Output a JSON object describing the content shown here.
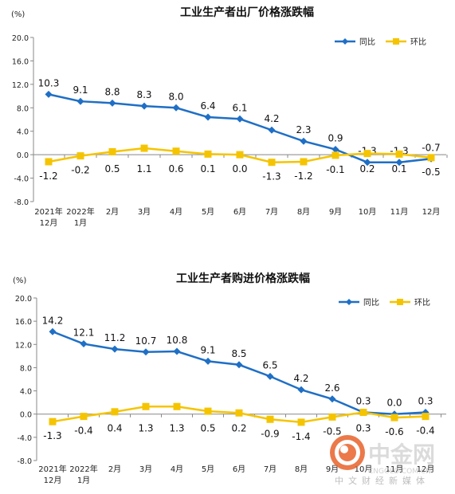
{
  "chart_data": [
    {
      "type": "line",
      "title": "工业生产者出厂价格涨跌幅",
      "unit_label": "(%)",
      "categories": [
        [
          "2021年",
          "12月"
        ],
        [
          "2022年",
          "1月"
        ],
        [
          "2月"
        ],
        [
          "3月"
        ],
        [
          "4月"
        ],
        [
          "5月"
        ],
        [
          "6月"
        ],
        [
          "7月"
        ],
        [
          "8月"
        ],
        [
          "9月"
        ],
        [
          "10月"
        ],
        [
          "11月"
        ],
        [
          "12月"
        ]
      ],
      "ylim": [
        -8.0,
        20.0
      ],
      "yticks": [
        "20.0",
        "16.0",
        "12.0",
        "8.0",
        "4.0",
        "0.0",
        "-4.0",
        "-8.0"
      ],
      "legend_position": "top-right",
      "grid": false,
      "series": [
        {
          "name": "同比",
          "color": "#1F6FC5",
          "marker": "diamond",
          "values": [
            10.3,
            9.1,
            8.8,
            8.3,
            8.0,
            6.4,
            6.1,
            4.2,
            2.3,
            0.9,
            -1.3,
            -1.3,
            -0.7
          ],
          "labels": [
            "10.3",
            "9.1",
            "8.8",
            "8.3",
            "8.0",
            "6.4",
            "6.1",
            "4.2",
            "2.3",
            "0.9",
            "-1.3",
            "-1.3",
            "-0.7"
          ]
        },
        {
          "name": "环比",
          "color": "#F5C400",
          "marker": "square",
          "values": [
            -1.2,
            -0.2,
            0.5,
            1.1,
            0.6,
            0.1,
            0.0,
            -1.3,
            -1.2,
            -0.1,
            0.2,
            0.1,
            -0.5
          ],
          "labels": [
            "-1.2",
            "-0.2",
            "0.5",
            "1.1",
            "0.6",
            "0.1",
            "0.0",
            "-1.3",
            "-1.2",
            "-0.1",
            "0.2",
            "0.1",
            "-0.5"
          ]
        }
      ]
    },
    {
      "type": "line",
      "title": "工业生产者购进价格涨跌幅",
      "unit_label": "(%)",
      "categories": [
        [
          "2021年",
          "12月"
        ],
        [
          "2022年",
          "1月"
        ],
        [
          "2月"
        ],
        [
          "3月"
        ],
        [
          "4月"
        ],
        [
          "5月"
        ],
        [
          "6月"
        ],
        [
          "7月"
        ],
        [
          "8月"
        ],
        [
          "9月"
        ],
        [
          "10月"
        ],
        [
          "11月"
        ],
        [
          "12月"
        ]
      ],
      "ylim": [
        -8.0,
        20.0
      ],
      "yticks": [
        "20.0",
        "16.0",
        "12.0",
        "8.0",
        "4.0",
        "0.0",
        "-4.0",
        "-8.0"
      ],
      "legend_position": "top-right",
      "grid": false,
      "series": [
        {
          "name": "同比",
          "color": "#1F6FC5",
          "marker": "diamond",
          "values": [
            14.2,
            12.1,
            11.2,
            10.7,
            10.8,
            9.1,
            8.5,
            6.5,
            4.2,
            2.6,
            0.3,
            0.0,
            0.3
          ],
          "labels": [
            "14.2",
            "12.1",
            "11.2",
            "10.7",
            "10.8",
            "9.1",
            "8.5",
            "6.5",
            "4.2",
            "2.6",
            "0.3",
            "0.0",
            "0.3"
          ]
        },
        {
          "name": "环比",
          "color": "#F5C400",
          "marker": "square",
          "values": [
            -1.3,
            -0.4,
            0.4,
            1.3,
            1.3,
            0.5,
            0.2,
            -0.9,
            -1.4,
            -0.5,
            0.3,
            -0.6,
            -0.4
          ],
          "labels": [
            "-1.3",
            "-0.4",
            "0.4",
            "1.3",
            "1.3",
            "0.5",
            "0.2",
            "-0.9",
            "-1.4",
            "-0.5",
            "0.3",
            "-0.6",
            "-0.4"
          ]
        }
      ]
    }
  ],
  "watermark": {
    "brand": "中金网",
    "domain": "CNGOLD.COM.CN",
    "tagline": "中文财经新媒体"
  }
}
